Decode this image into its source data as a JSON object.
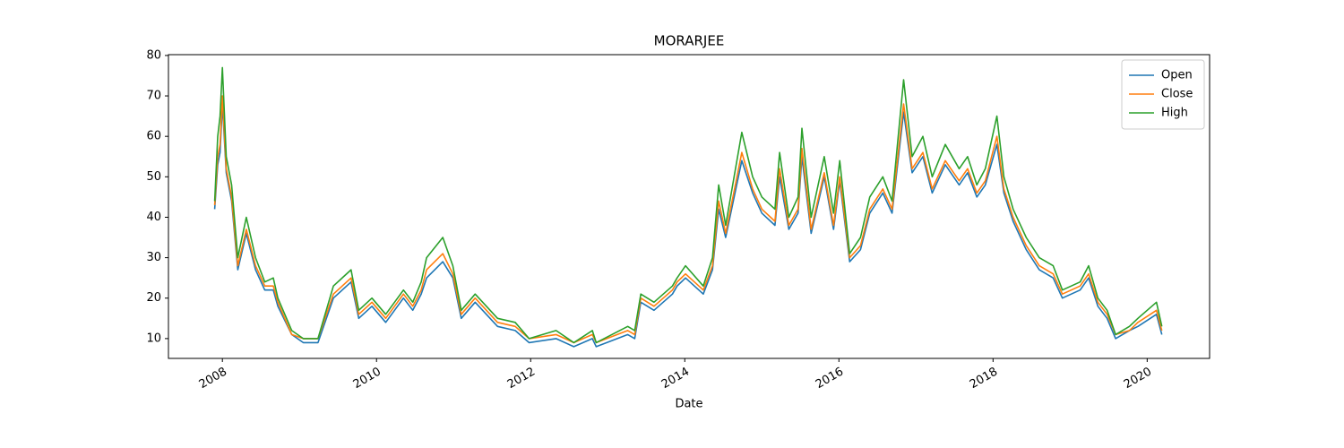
{
  "chart_data": {
    "type": "line",
    "title": "MORARJEE",
    "x_label": "Date",
    "x": [
      2007.9,
      2007.94,
      2007.97,
      2008.0,
      2008.05,
      2008.12,
      2008.2,
      2008.31,
      2008.43,
      2008.55,
      2008.66,
      2008.72,
      2008.9,
      2009.05,
      2009.24,
      2009.44,
      2009.67,
      2009.77,
      2009.94,
      2010.12,
      2010.35,
      2010.47,
      2010.58,
      2010.65,
      2010.86,
      2010.99,
      2011.1,
      2011.28,
      2011.57,
      2011.8,
      2011.98,
      2012.33,
      2012.56,
      2012.8,
      2012.85,
      2013.26,
      2013.35,
      2013.43,
      2013.6,
      2013.84,
      2013.9,
      2014.01,
      2014.24,
      2014.36,
      2014.44,
      2014.53,
      2014.74,
      2014.88,
      2015.0,
      2015.17,
      2015.23,
      2015.35,
      2015.47,
      2015.52,
      2015.64,
      2015.81,
      2015.93,
      2016.01,
      2016.14,
      2016.28,
      2016.4,
      2016.57,
      2016.69,
      2016.84,
      2016.95,
      2017.09,
      2017.21,
      2017.38,
      2017.56,
      2017.67,
      2017.79,
      2017.9,
      2018.05,
      2018.14,
      2018.26,
      2018.43,
      2018.6,
      2018.78,
      2018.9,
      2019.13,
      2019.24,
      2019.36,
      2019.48,
      2019.59,
      2019.77,
      2019.88,
      2020.12,
      2020.19
    ],
    "series": [
      {
        "name": "Open",
        "color": "#1f77b4",
        "values": [
          42,
          53,
          56,
          68,
          51,
          44,
          27,
          36,
          27,
          22,
          22,
          18,
          11,
          9,
          9,
          20,
          24,
          15,
          18,
          14,
          20,
          17,
          21,
          25,
          29,
          25,
          15,
          19,
          13,
          12,
          9,
          10,
          8,
          10,
          8,
          11,
          10,
          19,
          17,
          21,
          23,
          25,
          21,
          27,
          42,
          35,
          54,
          46,
          41,
          38,
          50,
          37,
          41,
          55,
          36,
          50,
          37,
          49,
          29,
          32,
          41,
          46,
          41,
          66,
          51,
          55,
          46,
          53,
          48,
          51,
          45,
          48,
          58,
          46,
          39,
          32,
          27,
          25,
          20,
          22,
          25,
          18,
          15,
          10,
          12,
          13,
          16,
          11
        ]
      },
      {
        "name": "Close",
        "color": "#ff7f0e",
        "values": [
          43,
          55,
          58,
          70,
          52,
          45,
          28,
          37,
          28,
          23,
          23,
          19,
          11,
          10,
          10,
          21,
          25,
          16,
          19,
          15,
          21,
          18,
          22,
          27,
          31,
          26,
          16,
          20,
          14,
          13,
          10,
          11,
          9,
          11,
          9,
          12,
          11,
          20,
          18,
          22,
          24,
          26,
          22,
          28,
          44,
          36,
          56,
          47,
          42,
          39,
          52,
          38,
          42,
          57,
          37,
          51,
          38,
          50,
          30,
          33,
          42,
          47,
          42,
          68,
          52,
          56,
          47,
          54,
          49,
          52,
          46,
          49,
          60,
          47,
          40,
          33,
          28,
          26,
          21,
          23,
          26,
          19,
          16,
          11,
          12,
          14,
          17,
          12
        ]
      },
      {
        "name": "High",
        "color": "#2ca02c",
        "values": [
          44,
          60,
          65,
          77,
          55,
          48,
          30,
          40,
          30,
          24,
          25,
          20,
          12,
          10,
          10,
          23,
          27,
          17,
          20,
          16,
          22,
          19,
          24,
          30,
          35,
          28,
          17,
          21,
          15,
          14,
          10,
          12,
          9,
          12,
          9,
          13,
          12,
          21,
          19,
          23,
          25,
          28,
          23,
          30,
          48,
          38,
          61,
          50,
          45,
          42,
          56,
          40,
          45,
          62,
          40,
          55,
          41,
          54,
          31,
          35,
          45,
          50,
          44,
          74,
          55,
          60,
          50,
          58,
          52,
          55,
          48,
          52,
          65,
          50,
          42,
          35,
          30,
          28,
          22,
          24,
          28,
          20,
          17,
          11,
          13,
          15,
          19,
          13
        ]
      }
    ],
    "xlim": [
      2007.3,
      2020.81
    ],
    "xticks": [
      2008,
      2010,
      2012,
      2014,
      2016,
      2018,
      2020
    ],
    "ylim": [
      5.1,
      80.2
    ],
    "yticks": [
      10,
      20,
      30,
      40,
      50,
      60,
      70,
      80
    ],
    "legend": "upper right"
  }
}
